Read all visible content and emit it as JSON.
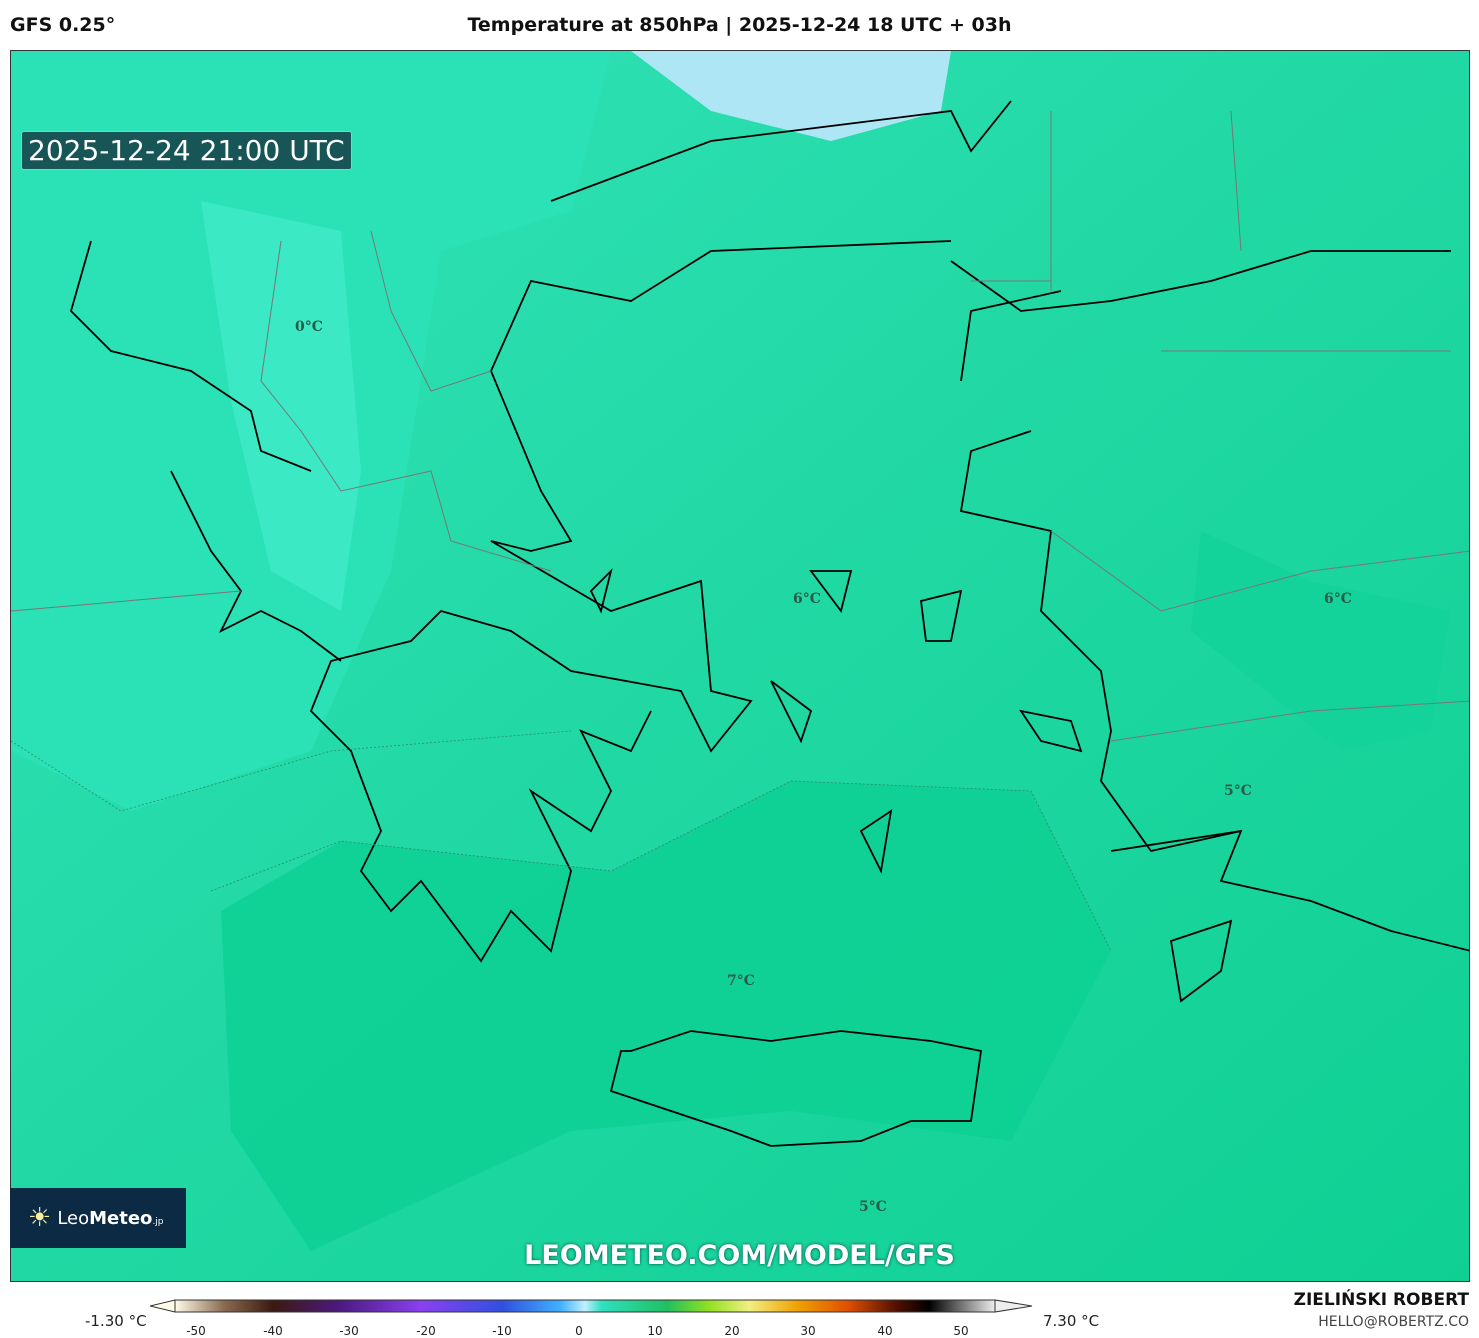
{
  "header": {
    "model": "GFS 0.25°",
    "title": "Temperature at 850hPa | 2025-12-24 18 UTC + 03h"
  },
  "map": {
    "valid_time": "2025-12-24 21:00 UTC",
    "contour_labels": [
      "0°C",
      "6°C",
      "6°C",
      "5°C",
      "7°C",
      "5°C"
    ],
    "colors": {
      "cold": "#3ee8c4",
      "base": "#1fd9a4",
      "warm": "#0ccf90",
      "frost": "#aee6f6"
    }
  },
  "logo": {
    "text_light": "Leo",
    "text_bold": "Meteo",
    "suffix": ".jp"
  },
  "watermark": "LEOMETEO.COM/MODEL/GFS",
  "colorbar": {
    "min_label": "-1.30 °C",
    "max_label": "7.30 °C",
    "ticks": [
      "-50",
      "-40",
      "-30",
      "-20",
      "-10",
      "0",
      "10",
      "20",
      "30",
      "40",
      "50"
    ]
  },
  "author": {
    "name": "ZIELIŃSKI ROBERT",
    "email": "HELLO@ROBERTZ.CO"
  }
}
